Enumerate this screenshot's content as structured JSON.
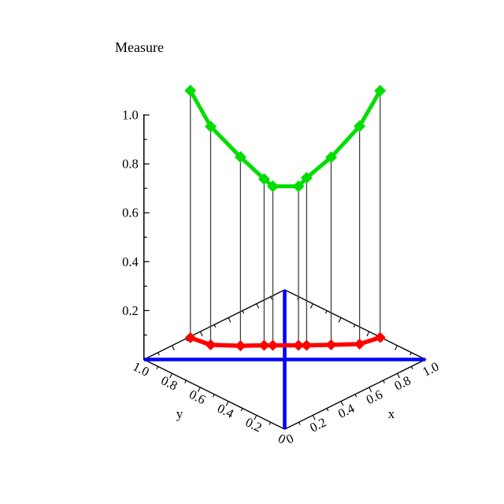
{
  "chart_data": {
    "type": "line",
    "projection": "3d",
    "title": "Measure",
    "description": "3D plot of two measure curves over points on the probability line y = 1 - x, with vertical drop lines connecting the upper (green) curve to the lower (red) curve above the base plane.",
    "x_axis": {
      "label": "x",
      "tick_values": [
        0,
        0.2,
        0.4,
        0.6,
        0.8,
        1.0
      ],
      "tick_labels": [
        "0",
        "0.2",
        "0.4",
        "0.6",
        "0.8",
        "1.0"
      ],
      "minor_tick_step": 0.1,
      "range": [
        0,
        1
      ]
    },
    "y_axis": {
      "label": "y",
      "tick_values": [
        1.0,
        0.8,
        0.6,
        0.4,
        0.2,
        0
      ],
      "tick_labels": [
        "1.0",
        "0.8",
        "0.6",
        "0.4",
        "0.2",
        "0"
      ],
      "minor_tick_step": 0.1,
      "range": [
        0,
        1
      ]
    },
    "z_axis": {
      "label": "Measure",
      "tick_values": [
        0.2,
        0.4,
        0.6,
        0.8,
        1.0
      ],
      "tick_labels": [
        "0.2",
        "0.4",
        "0.6",
        "0.8",
        "1.0"
      ],
      "minor_tick_step": 0.1,
      "range": [
        0,
        1.005
      ]
    },
    "points_x": [
      0.165,
      0.237,
      0.343,
      0.427,
      0.458,
      0.549,
      0.578,
      0.665,
      0.766,
      0.839
    ],
    "points_y": [
      0.835,
      0.763,
      0.657,
      0.573,
      0.542,
      0.451,
      0.422,
      0.335,
      0.234,
      0.161
    ],
    "series": [
      {
        "name": "upper-measure-curve",
        "color": "#00DD00",
        "marker": "diamond",
        "line_width": 5,
        "marker_radius": 7.5,
        "z": [
          1.1,
          0.953,
          0.828,
          0.738,
          0.708,
          0.708,
          0.743,
          0.827,
          0.954,
          1.099
        ]
      },
      {
        "name": "lower-measure-curve",
        "color": "#FF0000",
        "marker": "diamond",
        "line_width": 5.5,
        "marker_radius": 7,
        "z": [
          0.089,
          0.06,
          0.056,
          0.058,
          0.058,
          0.058,
          0.058,
          0.06,
          0.063,
          0.09
        ]
      }
    ],
    "drop_lines": true,
    "drop_line_color": "#404040",
    "base_diagonal_color": "#0000FF",
    "edge_color": "#000000",
    "grid": false,
    "legend": false
  }
}
